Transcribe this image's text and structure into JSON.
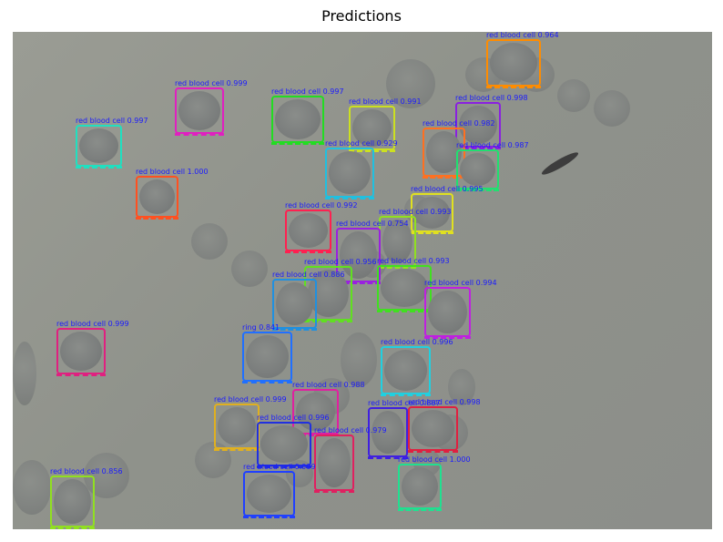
{
  "title": "Predictions",
  "detections": [
    {
      "label": "red blood cell 0.964",
      "color": "#ff8c00"
    },
    {
      "label": "red blood cell 0.999",
      "color": "#e020c0"
    },
    {
      "label": "red blood cell 0.997",
      "color": "#22dd22"
    },
    {
      "label": "red blood cell 0.991",
      "color": "#cce020"
    },
    {
      "label": "red blood cell 0.998",
      "color": "#8a20e0"
    },
    {
      "label": "red blood cell 0.997",
      "color": "#20e0c0"
    },
    {
      "label": "red blood cell 0.982",
      "color": "#ff7020"
    },
    {
      "label": "red blood cell 0.987",
      "color": "#20e070"
    },
    {
      "label": "red blood cell 0.929",
      "color": "#20c0e0"
    },
    {
      "label": "red blood cell 1.000",
      "color": "#ff5020"
    },
    {
      "label": "red blood cell 0.995",
      "color": "#e0e020"
    },
    {
      "label": "red blood cell 0.992",
      "color": "#ff2050"
    },
    {
      "label": "red blood cell 0.993",
      "color": "#90e020"
    },
    {
      "label": "red blood cell 0.754",
      "color": "#9a20e0"
    },
    {
      "label": "red blood cell 0.993",
      "color": "#40e020"
    },
    {
      "label": "red blood cell 0.956",
      "color": "#60e020"
    },
    {
      "label": "red blood cell 0.886",
      "color": "#2090e0"
    },
    {
      "label": "red blood cell 0.994",
      "color": "#c020e0"
    },
    {
      "label": "red blood cell 0.999",
      "color": "#e02080"
    },
    {
      "label": "ring 0.841",
      "color": "#2070ff"
    },
    {
      "label": "red blood cell 0.996",
      "color": "#20d0e0"
    },
    {
      "label": "red blood cell 0.988",
      "color": "#e020a0"
    },
    {
      "label": "red blood cell 0.999",
      "color": "#e0b020"
    },
    {
      "label": "red blood cell 0.807",
      "color": "#4020e0"
    },
    {
      "label": "red blood cell 0.998",
      "color": "#e02040"
    },
    {
      "label": "red blood cell 0.996",
      "color": "#2030e0"
    },
    {
      "label": "red blood cell 0.979",
      "color": "#e02060"
    },
    {
      "label": "red blood cell 1.000",
      "color": "#20e090"
    },
    {
      "label": "red blood cell 0.999",
      "color": "#2040ff"
    },
    {
      "label": "red blood cell 0.856",
      "color": "#90e020"
    }
  ]
}
